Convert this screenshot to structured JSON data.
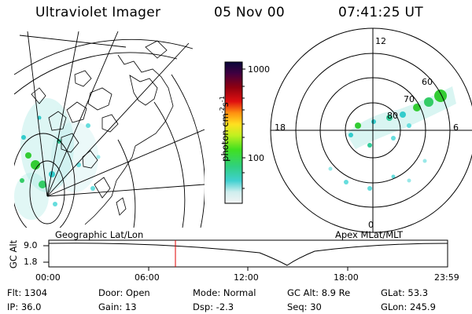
{
  "header": {
    "instrument": "Ultraviolet Imager",
    "date": "05 Nov 00",
    "time": "07:41:25 UT"
  },
  "colorbar": {
    "unit_main": "photon cm",
    "unit_sup1": "-2",
    "unit_mid": "s",
    "unit_sup2": "-1",
    "tick_1000": "1000",
    "tick_100": "100"
  },
  "polar_plot": {
    "label_top": "12",
    "label_left": "18",
    "label_right": "6",
    "label_bottom": "0",
    "ring_60": "60",
    "ring_70": "70",
    "ring_80": "80"
  },
  "panels": {
    "left_caption": "Geographic Lat/Lon",
    "right_caption": "Apex MLat/MLT"
  },
  "altitude_plot": {
    "axis_label": "GC Alt",
    "y_top": "9.0",
    "y_bottom": "1.8",
    "x_ticks": [
      "00:00",
      "06:00",
      "12:00",
      "18:00",
      "23:59"
    ]
  },
  "info": {
    "row1": [
      "Flt: 1304",
      "Door: Open",
      "Mode: Normal",
      "GC Alt: 8.9 Re",
      "GLat: 53.3"
    ],
    "row2": [
      "IP: 36.0",
      "Gain: 13",
      "Dsp: -2.3",
      "Seq: 30",
      "GLon: 245.9"
    ]
  },
  "colors": {
    "aurora_green": "#33cc33",
    "aurora_cyan": "#33cccc",
    "marker_red": "#e00000"
  }
}
